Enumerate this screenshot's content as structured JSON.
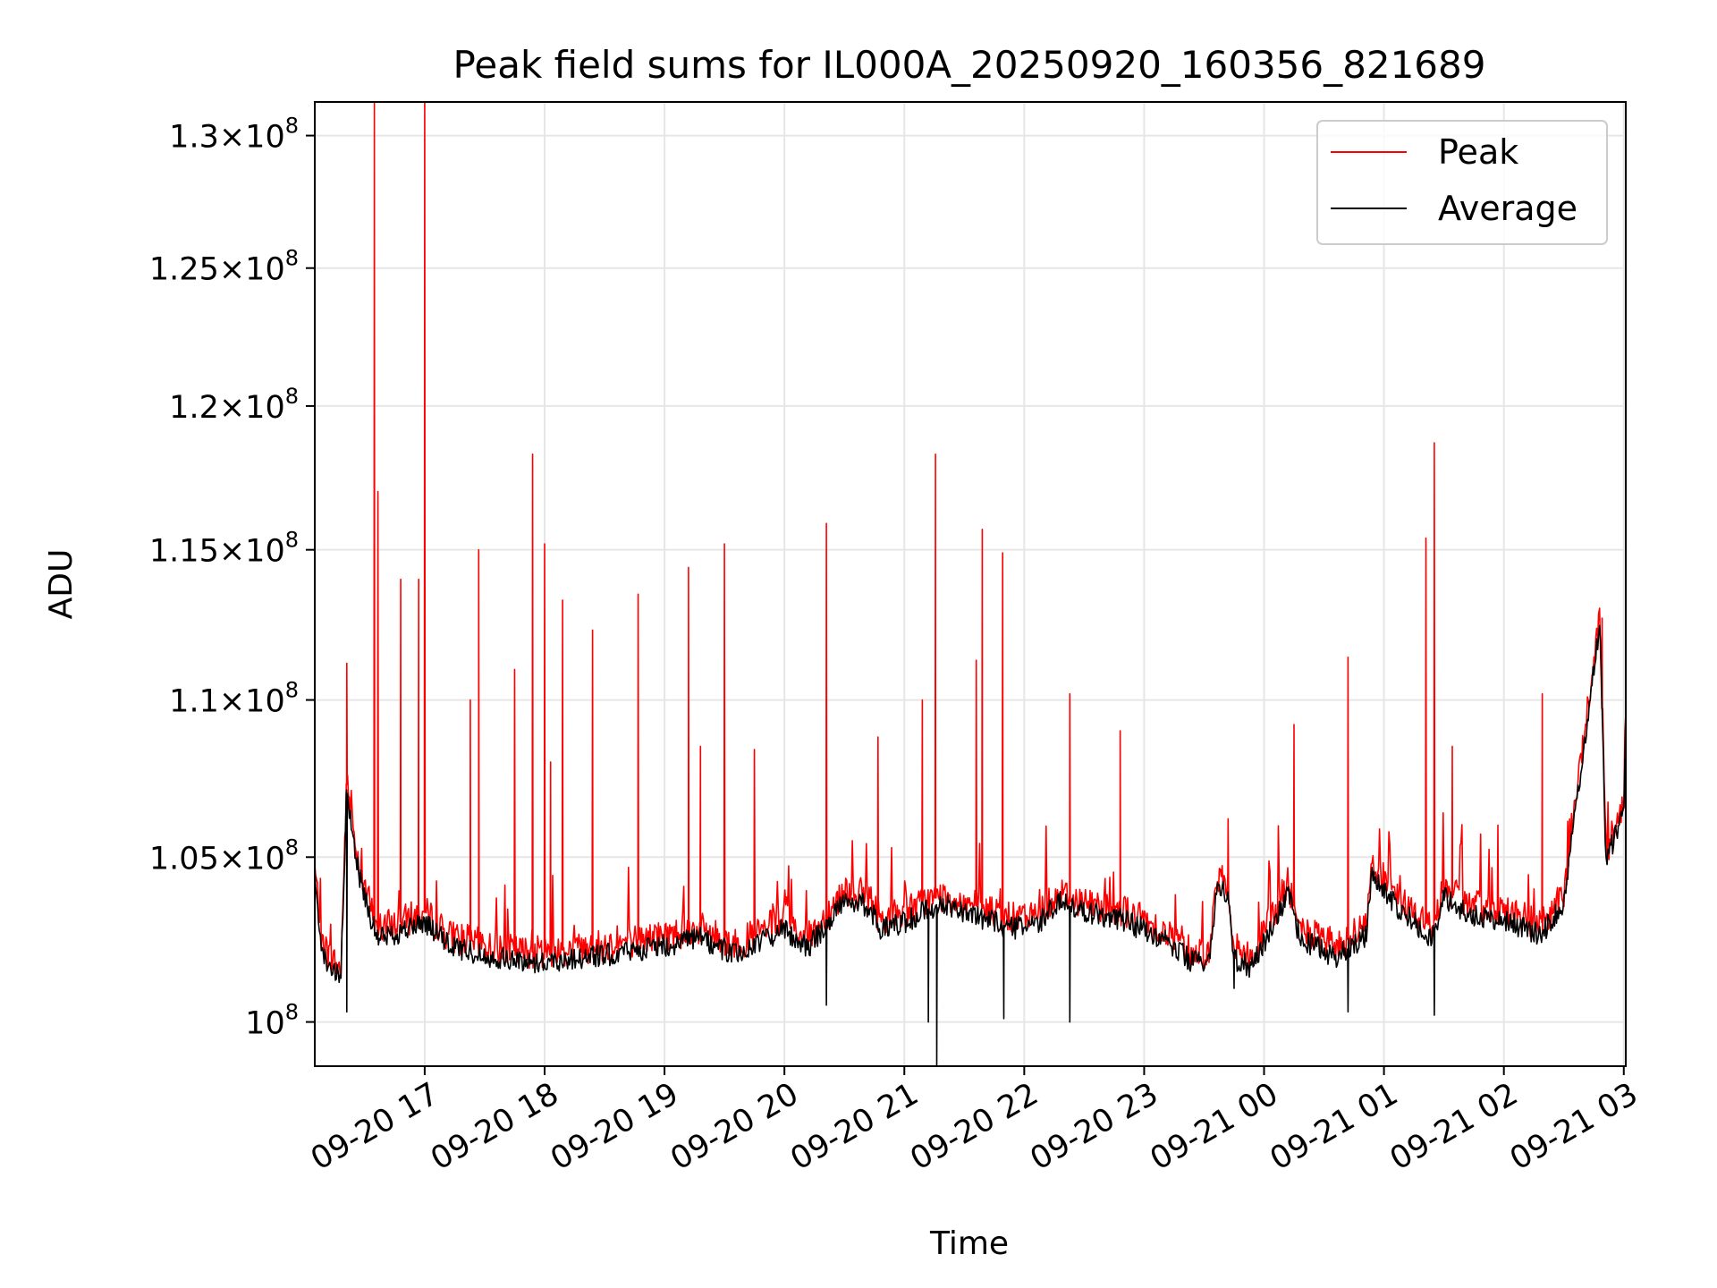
{
  "chart_data": {
    "type": "line",
    "title": "Peak field sums for IL000A_20250920_160356_821689",
    "xlabel": "Time",
    "ylabel": "ADU",
    "y_scale": "log",
    "xlim": [
      "09-20 16:05",
      "09-21 03:01"
    ],
    "ylim": [
      98700000,
      131300000
    ],
    "grid": true,
    "legend_position": "top-right",
    "x_ticks": [
      "09-20 17",
      "09-20 18",
      "09-20 19",
      "09-20 20",
      "09-20 21",
      "09-20 22",
      "09-20 23",
      "09-21 00",
      "09-21 01",
      "09-21 02",
      "09-21 03"
    ],
    "x_tick_hours": [
      17,
      18,
      19,
      20,
      21,
      22,
      23,
      24,
      25,
      26,
      27
    ],
    "y_ticks": [
      {
        "value": 100000000,
        "mantissa": "",
        "exponent": "8"
      },
      {
        "value": 105000000,
        "mantissa": "1.05",
        "exponent": "8"
      },
      {
        "value": 110000000,
        "mantissa": "1.1",
        "exponent": "8"
      },
      {
        "value": 115000000,
        "mantissa": "1.15",
        "exponent": "8"
      },
      {
        "value": 120000000,
        "mantissa": "1.2",
        "exponent": "8"
      },
      {
        "value": 125000000,
        "mantissa": "1.25",
        "exponent": "8"
      },
      {
        "value": 130000000,
        "mantissa": "1.3",
        "exponent": "8"
      }
    ],
    "baseline_hours": [
      16.06,
      16.15,
      16.3,
      16.35,
      16.45,
      16.6,
      16.8,
      17.0,
      17.2,
      17.5,
      17.8,
      18.0,
      18.5,
      19.0,
      19.3,
      19.6,
      20.0,
      20.2,
      20.5,
      20.7,
      20.8,
      21.0,
      21.2,
      21.35,
      21.6,
      21.9,
      22.1,
      22.2,
      22.3,
      22.5,
      22.8,
      23.1,
      23.4,
      23.55,
      23.6,
      23.7,
      23.75,
      23.9,
      24.2,
      24.3,
      24.6,
      24.85,
      24.9,
      25.1,
      25.4,
      25.5,
      25.7,
      26.0,
      26.3,
      26.5,
      26.8,
      26.85,
      27.0,
      27.02
    ],
    "baseline_values": [
      105200000,
      102000000,
      101200000,
      107000000,
      104500000,
      102500000,
      102700000,
      103000000,
      102300000,
      102000000,
      101800000,
      101800000,
      102000000,
      102300000,
      102500000,
      102000000,
      102800000,
      102200000,
      103700000,
      103500000,
      102800000,
      103000000,
      103400000,
      103500000,
      103200000,
      102800000,
      102900000,
      103300000,
      103600000,
      103300000,
      103100000,
      102600000,
      101800000,
      101800000,
      104000000,
      103900000,
      101900000,
      101600000,
      103900000,
      102500000,
      101900000,
      102600000,
      104500000,
      103500000,
      102500000,
      103800000,
      103200000,
      103100000,
      102600000,
      103500000,
      112500000,
      104800000,
      106500000,
      110000000
    ],
    "series": [
      {
        "name": "Peak",
        "color": "#ff0000",
        "offset": 300000,
        "noise": 500000,
        "spikes": [
          [
            16.58,
            131300000
          ],
          [
            16.61,
            117000000
          ],
          [
            17.0,
            131300000
          ],
          [
            16.95,
            114000000
          ],
          [
            16.8,
            114000000
          ],
          [
            16.35,
            111200000
          ],
          [
            17.45,
            115000000
          ],
          [
            17.38,
            110000000
          ],
          [
            17.75,
            111000000
          ],
          [
            17.9,
            118300000
          ],
          [
            18.0,
            115200000
          ],
          [
            18.15,
            113300000
          ],
          [
            18.4,
            112300000
          ],
          [
            18.05,
            108000000
          ],
          [
            18.78,
            113500000
          ],
          [
            19.2,
            114400000
          ],
          [
            19.5,
            115200000
          ],
          [
            19.3,
            108500000
          ],
          [
            19.75,
            108400000
          ],
          [
            20.35,
            115900000
          ],
          [
            20.78,
            108800000
          ],
          [
            21.15,
            110000000
          ],
          [
            21.26,
            118300000
          ],
          [
            21.6,
            111300000
          ],
          [
            21.65,
            115700000
          ],
          [
            21.82,
            114900000
          ],
          [
            22.38,
            110200000
          ],
          [
            22.8,
            109000000
          ],
          [
            23.7,
            106200000
          ],
          [
            24.25,
            109200000
          ],
          [
            24.7,
            111400000
          ],
          [
            25.35,
            115400000
          ],
          [
            25.42,
            118700000
          ],
          [
            25.57,
            108500000
          ],
          [
            25.95,
            106000000
          ],
          [
            26.32,
            110200000
          ],
          [
            26.82,
            112700000
          ]
        ]
      },
      {
        "name": "Average",
        "color": "#000000",
        "offset": 0,
        "noise": 350000,
        "dips": [
          [
            16.35,
            100300000
          ],
          [
            21.27,
            98700000
          ],
          [
            21.2,
            100000000
          ],
          [
            21.83,
            100100000
          ],
          [
            22.38,
            100000000
          ],
          [
            24.7,
            100300000
          ],
          [
            25.42,
            100200000
          ],
          [
            23.75,
            101000000
          ],
          [
            20.35,
            100500000
          ]
        ]
      }
    ]
  }
}
